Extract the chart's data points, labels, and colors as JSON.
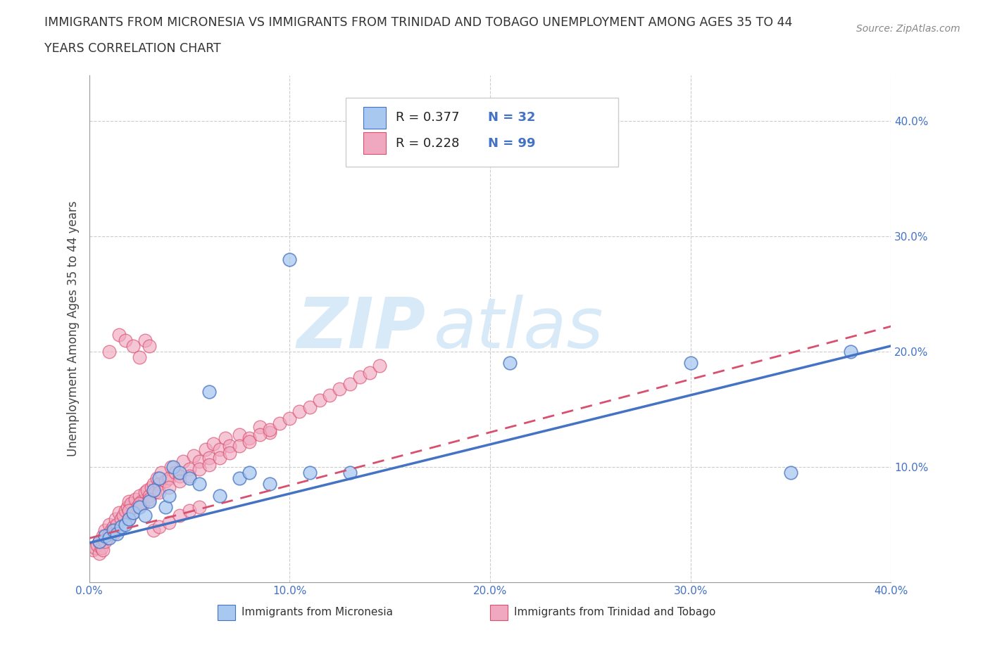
{
  "title_line1": "IMMIGRANTS FROM MICRONESIA VS IMMIGRANTS FROM TRINIDAD AND TOBAGO UNEMPLOYMENT AMONG AGES 35 TO 44",
  "title_line2": "YEARS CORRELATION CHART",
  "source_text": "Source: ZipAtlas.com",
  "ylabel": "Unemployment Among Ages 35 to 44 years",
  "xlim": [
    0.0,
    0.4
  ],
  "ylim": [
    0.0,
    0.44
  ],
  "xtick_labels": [
    "0.0%",
    "10.0%",
    "20.0%",
    "30.0%",
    "40.0%"
  ],
  "xtick_vals": [
    0.0,
    0.1,
    0.2,
    0.3,
    0.4
  ],
  "ytick_labels": [
    "10.0%",
    "20.0%",
    "30.0%",
    "40.0%"
  ],
  "ytick_vals": [
    0.1,
    0.2,
    0.3,
    0.4
  ],
  "legend_r1": "R = 0.377",
  "legend_n1": "N = 32",
  "legend_r2": "R = 0.228",
  "legend_n2": "N = 99",
  "color_blue": "#a8c8f0",
  "color_pink": "#f0a8c0",
  "color_blue_line": "#4472c4",
  "color_pink_line": "#d94f6e",
  "color_r_text": "#4472c4",
  "watermark_color": "#d8eaf8",
  "bottom_label1": "Immigrants from Micronesia",
  "bottom_label2": "Immigrants from Trinidad and Tobago",
  "mic_line_x0": 0.0,
  "mic_line_y0": 0.034,
  "mic_line_x1": 0.4,
  "mic_line_y1": 0.205,
  "tri_line_x0": 0.0,
  "tri_line_y0": 0.038,
  "tri_line_x1": 0.4,
  "tri_line_y1": 0.222,
  "mic_points_x": [
    0.005,
    0.008,
    0.01,
    0.012,
    0.014,
    0.016,
    0.018,
    0.02,
    0.022,
    0.025,
    0.028,
    0.03,
    0.032,
    0.035,
    0.038,
    0.04,
    0.042,
    0.045,
    0.05,
    0.055,
    0.06,
    0.065,
    0.075,
    0.08,
    0.09,
    0.1,
    0.11,
    0.13,
    0.21,
    0.3,
    0.35,
    0.38
  ],
  "mic_points_y": [
    0.035,
    0.04,
    0.038,
    0.045,
    0.042,
    0.048,
    0.05,
    0.055,
    0.06,
    0.065,
    0.058,
    0.07,
    0.08,
    0.09,
    0.065,
    0.075,
    0.1,
    0.095,
    0.09,
    0.085,
    0.165,
    0.075,
    0.09,
    0.095,
    0.085,
    0.28,
    0.095,
    0.095,
    0.19,
    0.19,
    0.095,
    0.2
  ],
  "tri_points_x": [
    0.002,
    0.003,
    0.004,
    0.005,
    0.005,
    0.006,
    0.007,
    0.007,
    0.008,
    0.008,
    0.009,
    0.01,
    0.01,
    0.011,
    0.012,
    0.013,
    0.014,
    0.015,
    0.016,
    0.017,
    0.018,
    0.019,
    0.02,
    0.02,
    0.021,
    0.022,
    0.023,
    0.024,
    0.025,
    0.026,
    0.027,
    0.028,
    0.029,
    0.03,
    0.031,
    0.032,
    0.033,
    0.034,
    0.035,
    0.036,
    0.038,
    0.04,
    0.041,
    0.043,
    0.045,
    0.047,
    0.05,
    0.052,
    0.055,
    0.058,
    0.06,
    0.062,
    0.065,
    0.068,
    0.07,
    0.075,
    0.08,
    0.085,
    0.09,
    0.01,
    0.015,
    0.018,
    0.022,
    0.025,
    0.028,
    0.03,
    0.032,
    0.035,
    0.04,
    0.045,
    0.05,
    0.055,
    0.012,
    0.02,
    0.025,
    0.03,
    0.035,
    0.04,
    0.045,
    0.05,
    0.055,
    0.06,
    0.065,
    0.07,
    0.075,
    0.08,
    0.085,
    0.09,
    0.095,
    0.1,
    0.105,
    0.11,
    0.115,
    0.12,
    0.125,
    0.13,
    0.135,
    0.14,
    0.145
  ],
  "tri_points_y": [
    0.028,
    0.03,
    0.032,
    0.025,
    0.035,
    0.03,
    0.028,
    0.04,
    0.035,
    0.045,
    0.038,
    0.042,
    0.05,
    0.045,
    0.048,
    0.055,
    0.05,
    0.06,
    0.055,
    0.058,
    0.062,
    0.065,
    0.055,
    0.07,
    0.068,
    0.06,
    0.072,
    0.065,
    0.075,
    0.07,
    0.068,
    0.078,
    0.08,
    0.075,
    0.082,
    0.085,
    0.078,
    0.09,
    0.085,
    0.095,
    0.088,
    0.09,
    0.1,
    0.095,
    0.092,
    0.105,
    0.098,
    0.11,
    0.105,
    0.115,
    0.108,
    0.12,
    0.115,
    0.125,
    0.118,
    0.128,
    0.125,
    0.135,
    0.13,
    0.2,
    0.215,
    0.21,
    0.205,
    0.195,
    0.21,
    0.205,
    0.045,
    0.048,
    0.052,
    0.058,
    0.062,
    0.065,
    0.042,
    0.062,
    0.068,
    0.072,
    0.078,
    0.082,
    0.088,
    0.092,
    0.098,
    0.102,
    0.108,
    0.112,
    0.118,
    0.122,
    0.128,
    0.132,
    0.138,
    0.142,
    0.148,
    0.152,
    0.158,
    0.162,
    0.168,
    0.172,
    0.178,
    0.182,
    0.188
  ]
}
